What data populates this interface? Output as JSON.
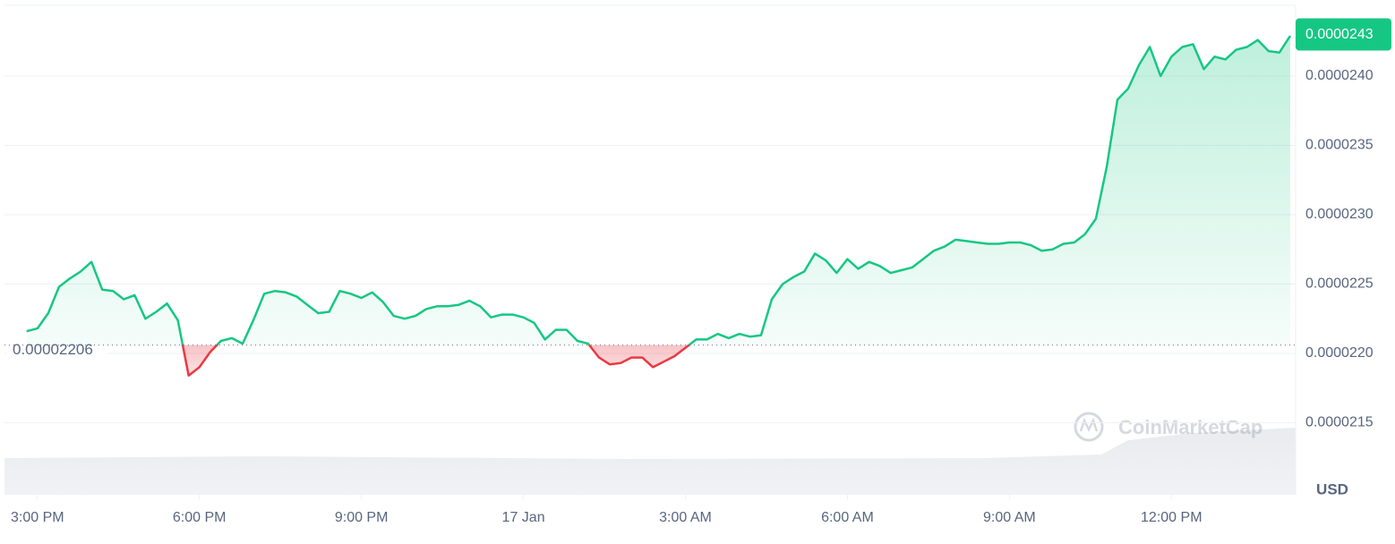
{
  "chart_data": {
    "type": "line",
    "x": [
      14.8,
      15,
      15.2,
      15.4,
      15.6,
      15.8,
      16,
      16.2,
      16.4,
      16.6,
      16.8,
      17,
      17.2,
      17.4,
      17.6,
      17.8,
      18,
      18.2,
      18.4,
      18.6,
      18.8,
      19,
      19.2,
      19.4,
      19.6,
      19.8,
      20,
      20.2,
      20.4,
      20.6,
      20.8,
      21,
      21.2,
      21.4,
      21.6,
      21.8,
      22,
      22.2,
      22.4,
      22.6,
      22.8,
      23,
      23.2,
      23.4,
      23.6,
      23.8,
      24,
      24.2,
      24.4,
      24.6,
      24.8,
      25,
      25.2,
      25.4,
      25.6,
      25.8,
      26,
      26.2,
      26.4,
      26.6,
      26.8,
      27,
      27.2,
      27.4,
      27.6,
      27.8,
      28,
      28.2,
      28.4,
      28.6,
      28.8,
      29,
      29.2,
      29.4,
      29.6,
      29.8,
      30,
      30.2,
      30.4,
      30.6,
      30.8,
      31,
      31.2,
      31.4,
      31.6,
      31.8,
      32,
      32.2,
      32.4,
      32.6,
      32.8,
      33,
      33.2,
      33.4,
      33.6,
      33.8,
      34,
      34.2,
      34.4,
      34.6,
      34.8,
      35,
      35.2,
      35.4,
      35.6,
      35.8,
      36,
      36.2,
      36.4,
      36.6,
      36.8,
      37,
      37.2,
      37.4,
      37.6,
      37.8,
      38,
      38.2
    ],
    "values": [
      2.216e-05,
      2.218e-05,
      2.229e-05,
      2.248e-05,
      2.254e-05,
      2.259e-05,
      2.266e-05,
      2.246e-05,
      2.245e-05,
      2.239e-05,
      2.242e-05,
      2.225e-05,
      2.23e-05,
      2.236e-05,
      2.224e-05,
      2.184e-05,
      2.19e-05,
      2.201e-05,
      2.209e-05,
      2.211e-05,
      2.207e-05,
      2.224e-05,
      2.243e-05,
      2.245e-05,
      2.244e-05,
      2.241e-05,
      2.235e-05,
      2.229e-05,
      2.23e-05,
      2.245e-05,
      2.243e-05,
      2.24e-05,
      2.244e-05,
      2.237e-05,
      2.227e-05,
      2.225e-05,
      2.227e-05,
      2.232e-05,
      2.234e-05,
      2.234e-05,
      2.235e-05,
      2.238e-05,
      2.234e-05,
      2.226e-05,
      2.228e-05,
      2.228e-05,
      2.226e-05,
      2.222e-05,
      2.21e-05,
      2.217e-05,
      2.217e-05,
      2.209e-05,
      2.207e-05,
      2.197e-05,
      2.192e-05,
      2.193e-05,
      2.197e-05,
      2.197e-05,
      2.19e-05,
      2.194e-05,
      2.198e-05,
      2.204e-05,
      2.21e-05,
      2.21e-05,
      2.214e-05,
      2.211e-05,
      2.214e-05,
      2.212e-05,
      2.213e-05,
      2.239e-05,
      2.25e-05,
      2.255e-05,
      2.259e-05,
      2.272e-05,
      2.267e-05,
      2.258e-05,
      2.268e-05,
      2.261e-05,
      2.266e-05,
      2.263e-05,
      2.258e-05,
      2.26e-05,
      2.262e-05,
      2.268e-05,
      2.274e-05,
      2.277e-05,
      2.282e-05,
      2.281e-05,
      2.28e-05,
      2.279e-05,
      2.279e-05,
      2.28e-05,
      2.28e-05,
      2.278e-05,
      2.274e-05,
      2.275e-05,
      2.279e-05,
      2.28e-05,
      2.286e-05,
      2.297e-05,
      2.334e-05,
      2.383e-05,
      2.391e-05,
      2.408e-05,
      2.421e-05,
      2.4e-05,
      2.414e-05,
      2.421e-05,
      2.423e-05,
      2.405e-05,
      2.414e-05,
      2.412e-05,
      2.419e-05,
      2.421e-05,
      2.426e-05,
      2.418e-05,
      2.417e-05,
      2.429e-05
    ],
    "reference_price": 2.206e-05,
    "current_price": 2.43e-05,
    "currency": "USD",
    "watermark": "CoinMarketCap",
    "color_up": "#16c784",
    "color_down": "#ea3943",
    "xlim": [
      14.39,
      38.3
    ],
    "xticks": [
      {
        "value": 15,
        "label": "3:00 PM"
      },
      {
        "value": 18,
        "label": "6:00 PM"
      },
      {
        "value": 21,
        "label": "9:00 PM"
      },
      {
        "value": 24,
        "label": "17 Jan"
      },
      {
        "value": 27,
        "label": "3:00 AM"
      },
      {
        "value": 30,
        "label": "6:00 AM"
      },
      {
        "value": 33,
        "label": "9:00 AM"
      },
      {
        "value": 36,
        "label": "12:00 PM"
      }
    ],
    "ylim": [
      2.098e-05,
      2.451e-05
    ],
    "yticks": [
      2.15e-05,
      {
        "value": 2.2e-05,
        "label": "0.0000220"
      },
      2.25e-05,
      {
        "value": 2.3e-05,
        "label": "0.0000230"
      },
      2.35e-05,
      {
        "value": 2.4e-05,
        "label": "0.0000240"
      }
    ],
    "grid": true
  }
}
